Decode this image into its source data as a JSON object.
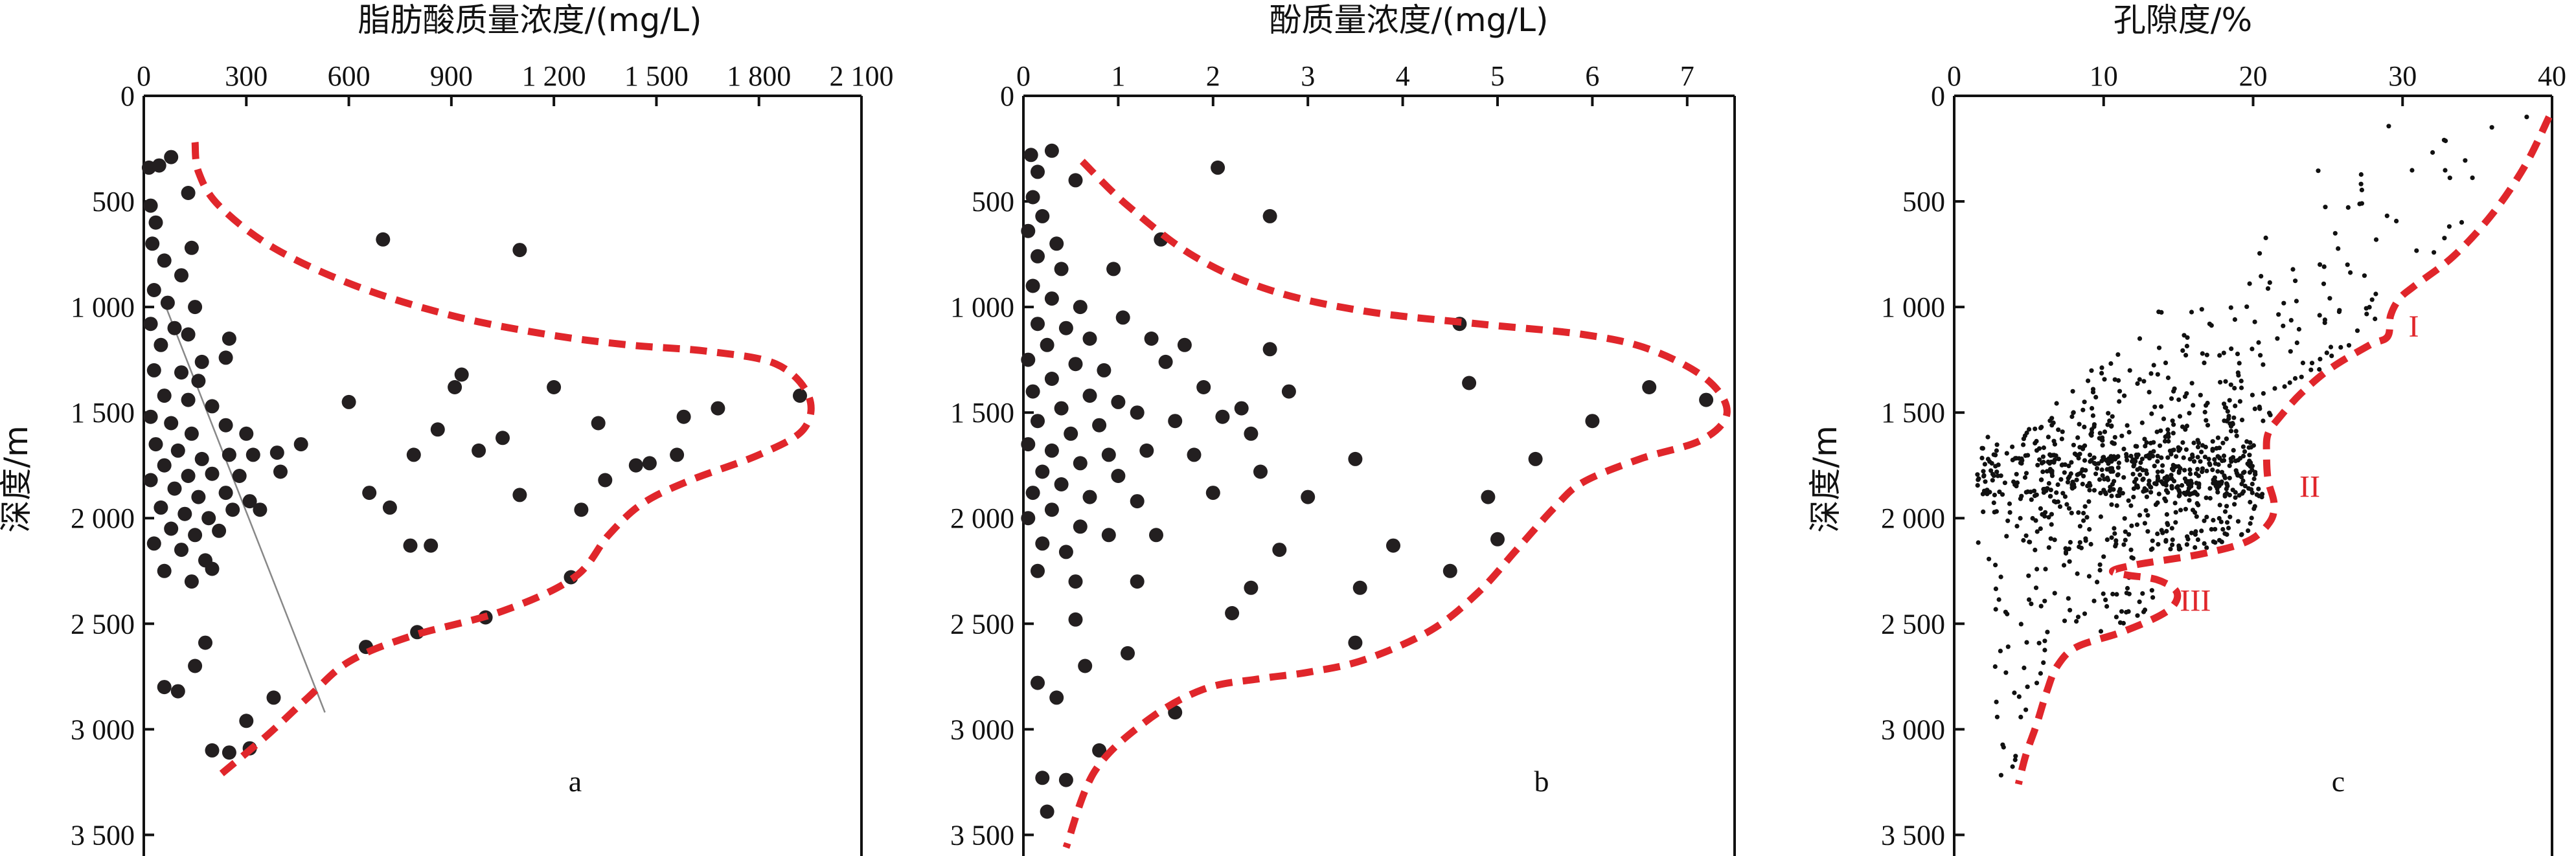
{
  "chart_data": [
    {
      "type": "scatter",
      "panel_label": "a",
      "xlabel": "脂肪酸质量浓度/(mg/L)",
      "ylabel": "深度/m",
      "x_axis_position": "top",
      "y_inverted": true,
      "xlim": [
        0,
        2100
      ],
      "ylim": [
        0,
        3600
      ],
      "xticks": [
        0,
        300,
        600,
        900,
        1200,
        1500,
        1800,
        2100
      ],
      "xtick_labels": [
        "0",
        "300",
        "600",
        "900",
        "1 200",
        "1 500",
        "1 800",
        "2 100"
      ],
      "yticks": [
        0,
        500,
        1000,
        1500,
        2000,
        2500,
        3000,
        3500
      ],
      "ytick_labels": [
        "0",
        "500",
        "1 000",
        "1 500",
        "2 000",
        "2 500",
        "3 000",
        "3 500"
      ],
      "marker_color": "#231f20",
      "envelope_color": "#e0262b",
      "points": [
        [
          15,
          340
        ],
        [
          45,
          330
        ],
        [
          80,
          290
        ],
        [
          130,
          460
        ],
        [
          20,
          520
        ],
        [
          35,
          600
        ],
        [
          25,
          700
        ],
        [
          60,
          780
        ],
        [
          140,
          720
        ],
        [
          110,
          850
        ],
        [
          30,
          920
        ],
        [
          70,
          980
        ],
        [
          150,
          1000
        ],
        [
          20,
          1080
        ],
        [
          90,
          1100
        ],
        [
          130,
          1130
        ],
        [
          50,
          1180
        ],
        [
          170,
          1260
        ],
        [
          250,
          1150
        ],
        [
          240,
          1240
        ],
        [
          30,
          1300
        ],
        [
          110,
          1310
        ],
        [
          160,
          1350
        ],
        [
          60,
          1420
        ],
        [
          130,
          1440
        ],
        [
          200,
          1470
        ],
        [
          20,
          1520
        ],
        [
          80,
          1550
        ],
        [
          140,
          1600
        ],
        [
          240,
          1560
        ],
        [
          300,
          1600
        ],
        [
          35,
          1650
        ],
        [
          100,
          1680
        ],
        [
          170,
          1720
        ],
        [
          250,
          1700
        ],
        [
          320,
          1700
        ],
        [
          390,
          1690
        ],
        [
          60,
          1750
        ],
        [
          130,
          1800
        ],
        [
          200,
          1790
        ],
        [
          280,
          1800
        ],
        [
          20,
          1820
        ],
        [
          90,
          1860
        ],
        [
          160,
          1900
        ],
        [
          240,
          1880
        ],
        [
          310,
          1920
        ],
        [
          50,
          1950
        ],
        [
          120,
          1980
        ],
        [
          190,
          2000
        ],
        [
          260,
          1960
        ],
        [
          340,
          1960
        ],
        [
          80,
          2050
        ],
        [
          150,
          2080
        ],
        [
          220,
          2060
        ],
        [
          30,
          2120
        ],
        [
          110,
          2150
        ],
        [
          180,
          2200
        ],
        [
          60,
          2250
        ],
        [
          140,
          2300
        ],
        [
          200,
          2240
        ],
        [
          400,
          1780
        ],
        [
          460,
          1650
        ],
        [
          600,
          1450
        ],
        [
          660,
          1880
        ],
        [
          720,
          1950
        ],
        [
          780,
          2130
        ],
        [
          840,
          2130
        ],
        [
          790,
          1700
        ],
        [
          860,
          1580
        ],
        [
          910,
          1380
        ],
        [
          930,
          1320
        ],
        [
          980,
          1680
        ],
        [
          1050,
          1620
        ],
        [
          1100,
          1890
        ],
        [
          1200,
          1380
        ],
        [
          1280,
          1960
        ],
        [
          1330,
          1550
        ],
        [
          1440,
          1750
        ],
        [
          1480,
          1740
        ],
        [
          1560,
          1700
        ],
        [
          1580,
          1520
        ],
        [
          1350,
          1820
        ],
        [
          1680,
          1480
        ],
        [
          1920,
          1420
        ],
        [
          700,
          680
        ],
        [
          1100,
          730
        ],
        [
          1250,
          2280
        ],
        [
          1000,
          2470
        ],
        [
          800,
          2540
        ],
        [
          650,
          2610
        ],
        [
          180,
          2590
        ],
        [
          60,
          2800
        ],
        [
          100,
          2820
        ],
        [
          150,
          2700
        ],
        [
          380,
          2850
        ],
        [
          300,
          2960
        ],
        [
          200,
          3100
        ],
        [
          250,
          3110
        ],
        [
          310,
          3090
        ]
      ],
      "envelope": [
        [
          150,
          220
        ],
        [
          160,
          360
        ],
        [
          220,
          520
        ],
        [
          380,
          720
        ],
        [
          620,
          900
        ],
        [
          900,
          1040
        ],
        [
          1180,
          1130
        ],
        [
          1420,
          1180
        ],
        [
          1650,
          1210
        ],
        [
          1850,
          1270
        ],
        [
          1945,
          1420
        ],
        [
          1930,
          1580
        ],
        [
          1800,
          1700
        ],
        [
          1600,
          1820
        ],
        [
          1460,
          1930
        ],
        [
          1360,
          2080
        ],
        [
          1260,
          2280
        ],
        [
          1050,
          2440
        ],
        [
          780,
          2560
        ],
        [
          600,
          2680
        ],
        [
          480,
          2850
        ],
        [
          360,
          3030
        ],
        [
          220,
          3220
        ]
      ],
      "guide_line": [
        [
          60,
          980
        ],
        [
          530,
          2920
        ]
      ]
    },
    {
      "type": "scatter",
      "panel_label": "b",
      "xlabel": "酚质量浓度/(mg/L)",
      "ylabel": "",
      "x_axis_position": "top",
      "y_inverted": true,
      "xlim": [
        0,
        7.5
      ],
      "ylim": [
        0,
        3600
      ],
      "xticks": [
        0,
        1,
        2,
        3,
        4,
        5,
        6,
        7
      ],
      "xtick_labels": [
        "0",
        "1",
        "2",
        "3",
        "4",
        "5",
        "6",
        "7"
      ],
      "yticks": [
        0,
        500,
        1000,
        1500,
        2000,
        2500,
        3000,
        3500
      ],
      "ytick_labels": [
        "0",
        "500",
        "1 000",
        "1 500",
        "2 000",
        "2 500",
        "3 000",
        "3 500"
      ],
      "marker_color": "#231f20",
      "envelope_color": "#e0262b",
      "points": [
        [
          0.08,
          280
        ],
        [
          0.15,
          360
        ],
        [
          0.3,
          260
        ],
        [
          0.55,
          400
        ],
        [
          0.1,
          480
        ],
        [
          0.2,
          570
        ],
        [
          0.05,
          640
        ],
        [
          0.35,
          700
        ],
        [
          0.15,
          760
        ],
        [
          0.4,
          820
        ],
        [
          0.1,
          900
        ],
        [
          0.3,
          960
        ],
        [
          0.6,
          1000
        ],
        [
          0.15,
          1080
        ],
        [
          0.45,
          1100
        ],
        [
          0.7,
          1150
        ],
        [
          0.25,
          1180
        ],
        [
          0.05,
          1250
        ],
        [
          0.55,
          1270
        ],
        [
          0.85,
          1300
        ],
        [
          0.3,
          1340
        ],
        [
          0.1,
          1400
        ],
        [
          0.7,
          1420
        ],
        [
          1.0,
          1450
        ],
        [
          0.4,
          1480
        ],
        [
          0.15,
          1540
        ],
        [
          0.8,
          1560
        ],
        [
          1.2,
          1500
        ],
        [
          0.5,
          1600
        ],
        [
          0.05,
          1650
        ],
        [
          0.3,
          1680
        ],
        [
          0.9,
          1700
        ],
        [
          1.3,
          1680
        ],
        [
          0.6,
          1740
        ],
        [
          0.2,
          1780
        ],
        [
          1.0,
          1800
        ],
        [
          0.4,
          1840
        ],
        [
          0.1,
          1880
        ],
        [
          0.7,
          1900
        ],
        [
          1.2,
          1920
        ],
        [
          0.3,
          1960
        ],
        [
          0.05,
          2000
        ],
        [
          0.6,
          2040
        ],
        [
          0.9,
          2080
        ],
        [
          0.2,
          2120
        ],
        [
          0.45,
          2160
        ],
        [
          0.15,
          2250
        ],
        [
          0.55,
          2300
        ],
        [
          1.05,
          1050
        ],
        [
          0.95,
          820
        ],
        [
          1.35,
          1150
        ],
        [
          1.5,
          1260
        ],
        [
          1.7,
          1180
        ],
        [
          1.9,
          1380
        ],
        [
          1.6,
          1540
        ],
        [
          2.1,
          1520
        ],
        [
          2.4,
          1600
        ],
        [
          1.8,
          1700
        ],
        [
          2.3,
          1480
        ],
        [
          2.0,
          1880
        ],
        [
          1.4,
          2080
        ],
        [
          2.6,
          1200
        ],
        [
          2.8,
          1400
        ],
        [
          2.5,
          1780
        ],
        [
          3.0,
          1900
        ],
        [
          2.7,
          2150
        ],
        [
          3.5,
          1720
        ],
        [
          3.9,
          2130
        ],
        [
          4.7,
          1360
        ],
        [
          4.9,
          1900
        ],
        [
          4.5,
          2250
        ],
        [
          5.0,
          2100
        ],
        [
          5.4,
          1720
        ],
        [
          6.0,
          1540
        ],
        [
          6.6,
          1380
        ],
        [
          7.2,
          1440
        ],
        [
          2.6,
          570
        ],
        [
          2.05,
          340
        ],
        [
          1.45,
          680
        ],
        [
          2.2,
          2450
        ],
        [
          2.4,
          2330
        ],
        [
          3.55,
          2330
        ],
        [
          3.5,
          2590
        ],
        [
          4.6,
          1080
        ],
        [
          0.15,
          2780
        ],
        [
          0.35,
          2850
        ],
        [
          0.65,
          2700
        ],
        [
          1.1,
          2640
        ],
        [
          1.6,
          2920
        ],
        [
          0.8,
          3100
        ],
        [
          0.2,
          3230
        ],
        [
          0.45,
          3240
        ],
        [
          0.25,
          3390
        ],
        [
          0.55,
          2480
        ],
        [
          1.2,
          2300
        ]
      ],
      "envelope": [
        [
          0.62,
          310
        ],
        [
          1.1,
          520
        ],
        [
          1.8,
          760
        ],
        [
          2.6,
          920
        ],
        [
          3.6,
          1020
        ],
        [
          4.8,
          1080
        ],
        [
          5.9,
          1130
        ],
        [
          6.6,
          1200
        ],
        [
          7.2,
          1340
        ],
        [
          7.42,
          1500
        ],
        [
          7.15,
          1630
        ],
        [
          6.5,
          1720
        ],
        [
          5.9,
          1830
        ],
        [
          5.6,
          1950
        ],
        [
          5.2,
          2150
        ],
        [
          4.8,
          2350
        ],
        [
          4.3,
          2530
        ],
        [
          3.6,
          2670
        ],
        [
          3.0,
          2730
        ],
        [
          2.5,
          2760
        ],
        [
          1.9,
          2810
        ],
        [
          1.3,
          2960
        ],
        [
          0.75,
          3200
        ],
        [
          0.45,
          3560
        ]
      ]
    },
    {
      "type": "scatter",
      "panel_label": "c",
      "xlabel": "孔隙度/%",
      "ylabel": "深度/m",
      "x_axis_position": "top",
      "y_inverted": true,
      "xlim": [
        0,
        40
      ],
      "ylim": [
        0,
        3600
      ],
      "xticks": [
        0,
        10,
        20,
        30,
        40
      ],
      "xtick_labels": [
        "0",
        "10",
        "20",
        "30",
        "40"
      ],
      "yticks": [
        0,
        500,
        1000,
        1500,
        2000,
        2500,
        3000,
        3500
      ],
      "ytick_labels": [
        "0",
        "500",
        "1 000",
        "1 500",
        "2 000",
        "2 500",
        "3 000",
        "3 500"
      ],
      "marker_color": "#111111",
      "envelope_color": "#e0262b",
      "envelope": [
        [
          39.8,
          100
        ],
        [
          38.2,
          330
        ],
        [
          36.0,
          560
        ],
        [
          33.4,
          760
        ],
        [
          30.8,
          900
        ],
        [
          29.8,
          960
        ],
        [
          29.2,
          1040
        ],
        [
          29.0,
          1140
        ],
        [
          27.8,
          1180
        ],
        [
          25.2,
          1290
        ],
        [
          23.2,
          1410
        ],
        [
          21.8,
          1520
        ],
        [
          21.0,
          1600
        ],
        [
          20.9,
          1700
        ],
        [
          21.0,
          1820
        ],
        [
          21.4,
          1930
        ],
        [
          21.1,
          2020
        ],
        [
          19.6,
          2110
        ],
        [
          16.5,
          2170
        ],
        [
          12.2,
          2220
        ],
        [
          10.6,
          2250
        ],
        [
          11.6,
          2270
        ],
        [
          13.5,
          2290
        ],
        [
          14.8,
          2340
        ],
        [
          14.8,
          2400
        ],
        [
          13.8,
          2460
        ],
        [
          11.2,
          2540
        ],
        [
          8.2,
          2610
        ],
        [
          6.9,
          2700
        ],
        [
          6.2,
          2820
        ],
        [
          5.5,
          2980
        ],
        [
          4.8,
          3120
        ],
        [
          4.3,
          3260
        ]
      ],
      "zone_labels": [
        {
          "text": "I",
          "x": 30.4,
          "y": 1140
        },
        {
          "text": "II",
          "x": 23.1,
          "y": 1900
        },
        {
          "text": "III",
          "x": 15.1,
          "y": 2440
        }
      ],
      "cloud_density": [
        [
          100,
          250,
          5
        ],
        [
          250,
          400,
          8
        ],
        [
          400,
          700,
          14
        ],
        [
          700,
          1000,
          22
        ],
        [
          1000,
          1300,
          60
        ],
        [
          1300,
          1550,
          90
        ],
        [
          1550,
          1700,
          130
        ],
        [
          1700,
          1900,
          400
        ],
        [
          1900,
          2150,
          160
        ],
        [
          2150,
          2300,
          20
        ],
        [
          2300,
          2500,
          40
        ],
        [
          2500,
          2750,
          14
        ],
        [
          2750,
          3000,
          8
        ],
        [
          3000,
          3250,
          6
        ]
      ]
    }
  ]
}
